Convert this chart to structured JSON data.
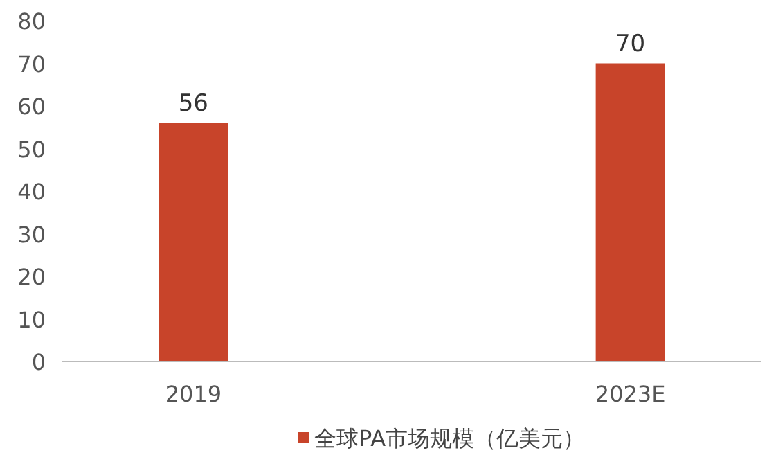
{
  "chart_data": {
    "type": "bar",
    "categories": [
      "2019",
      "2023E"
    ],
    "series": [
      {
        "name": "全球PA市场规模（亿美元）",
        "color": "#c8442a",
        "values": [
          56,
          70
        ]
      }
    ],
    "ylim": [
      0,
      80
    ],
    "yticks": [
      0,
      10,
      20,
      30,
      40,
      50,
      60,
      70,
      80
    ],
    "data_labels": true,
    "legend": "bottom"
  }
}
